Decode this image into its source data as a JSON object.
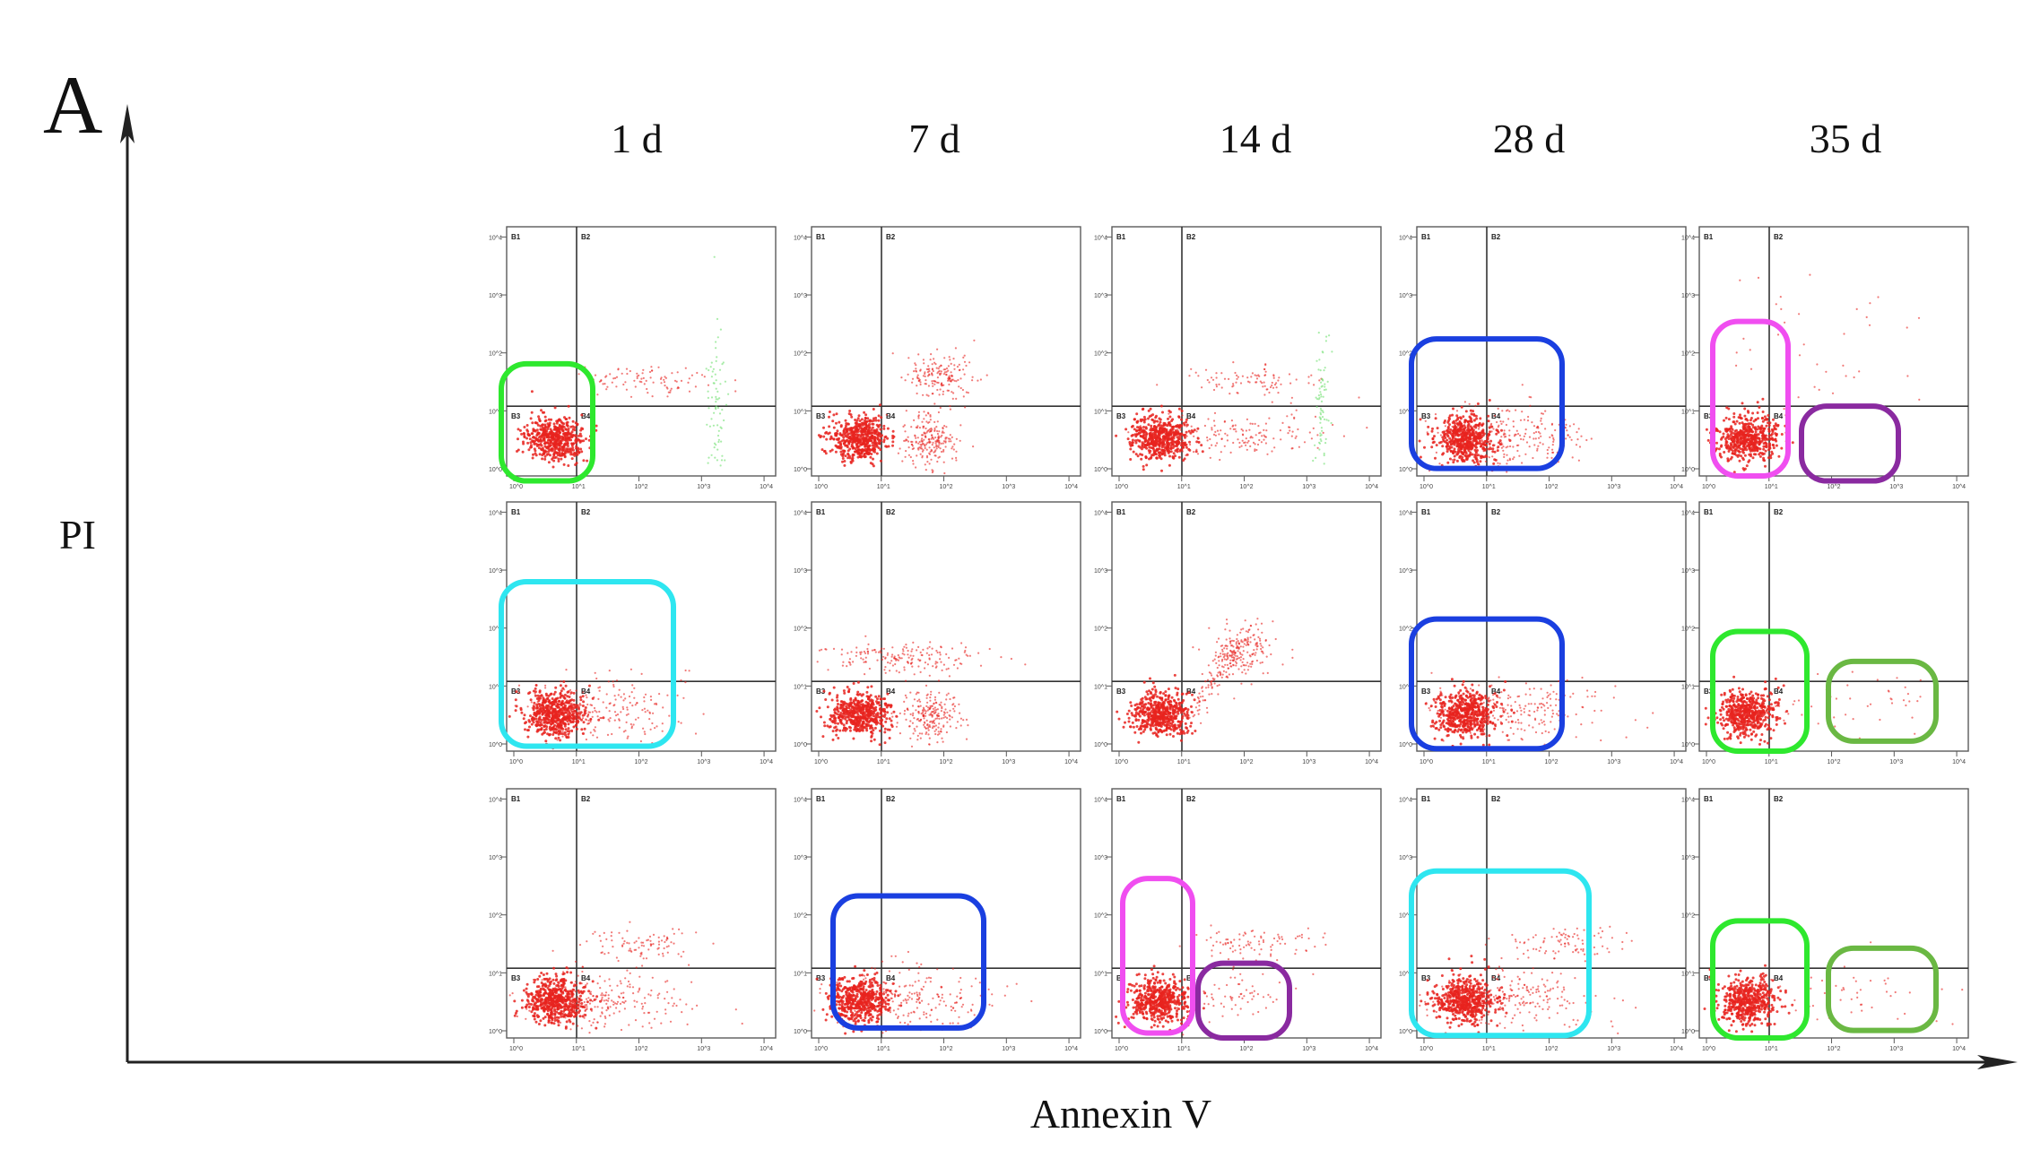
{
  "panel_label": "A",
  "axes": {
    "x_label": "Annexin V",
    "y_label": "PI"
  },
  "colors": {
    "dot": "#e8231f",
    "dot_green": "#6fe070",
    "frame": "#5a5a5a",
    "gate_line": "#333333",
    "green": "#2ee82e",
    "cyan": "#2ee6f0",
    "blue": "#1a3fe0",
    "magenta": "#f04ef0",
    "purple": "#8a2aa0",
    "olive": "#6ab843"
  },
  "chart_data": {
    "type": "scatter",
    "plot_kind": "flow cytometry dot plot grid",
    "columns": [
      "1 d",
      "7 d",
      "14 d",
      "28 d",
      "35 d"
    ],
    "rows": 3,
    "quadrant_labels": [
      "B1",
      "B2",
      "B3",
      "B4"
    ],
    "x_label": "Annexin V",
    "y_label": "PI",
    "x_scale": "log",
    "y_scale": "log",
    "ticks": [
      "10^0",
      "10^1",
      "10^2",
      "10^3",
      "10^4"
    ],
    "panels": [
      {
        "row": 0,
        "col": 0,
        "populations": [
          "live cluster",
          "B2 band",
          "green edge"
        ],
        "highlight": "green"
      },
      {
        "row": 0,
        "col": 1,
        "populations": [
          "live cluster",
          "B4 cluster",
          "B2 cluster"
        ]
      },
      {
        "row": 0,
        "col": 2,
        "populations": [
          "live cluster",
          "B4 band",
          "B2 band",
          "green edge"
        ]
      },
      {
        "row": 0,
        "col": 3,
        "populations": [
          "live cluster",
          "B4 spread"
        ],
        "highlight": "blue"
      },
      {
        "row": 0,
        "col": 4,
        "populations": [
          "live cluster",
          "sparse B2"
        ],
        "highlight": [
          "magenta",
          "purple"
        ]
      },
      {
        "row": 1,
        "col": 0,
        "populations": [
          "live cluster",
          "B4 spread"
        ],
        "highlight": "cyan"
      },
      {
        "row": 1,
        "col": 1,
        "populations": [
          "live cluster",
          "B4 cluster",
          "B1/B2 band"
        ]
      },
      {
        "row": 1,
        "col": 2,
        "populations": [
          "live cluster",
          "diagonal stream",
          "B2 cluster"
        ]
      },
      {
        "row": 1,
        "col": 3,
        "populations": [
          "live cluster",
          "B4 spread"
        ],
        "highlight": "blue"
      },
      {
        "row": 1,
        "col": 4,
        "populations": [
          "live cluster",
          "sparse B4"
        ],
        "highlight": [
          "green",
          "olive"
        ]
      },
      {
        "row": 2,
        "col": 0,
        "populations": [
          "live cluster",
          "B4 spread",
          "B2 band"
        ]
      },
      {
        "row": 2,
        "col": 1,
        "populations": [
          "live cluster",
          "B4 spread"
        ],
        "highlight": "blue"
      },
      {
        "row": 2,
        "col": 2,
        "populations": [
          "live cluster",
          "B4 sparse",
          "B2 band"
        ],
        "highlight": [
          "magenta",
          "purple"
        ]
      },
      {
        "row": 2,
        "col": 3,
        "populations": [
          "live cluster",
          "B4 spread",
          "B2 band"
        ],
        "highlight": "cyan"
      },
      {
        "row": 2,
        "col": 4,
        "populations": [
          "live cluster",
          "sparse B4"
        ],
        "highlight": [
          "green",
          "olive"
        ]
      }
    ]
  }
}
